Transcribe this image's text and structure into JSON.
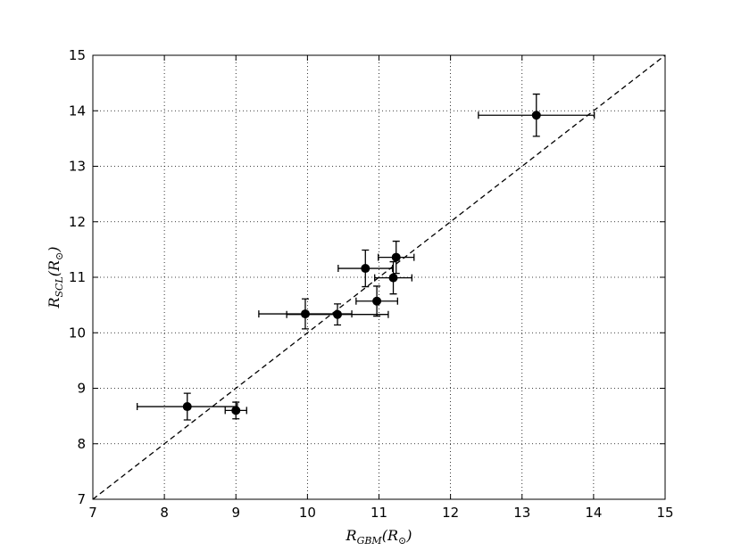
{
  "chart_data": {
    "type": "scatter",
    "x": [
      8.32,
      9.0,
      9.97,
      10.42,
      10.97,
      10.81,
      11.2,
      11.24,
      13.2
    ],
    "values": [
      8.67,
      8.6,
      10.34,
      10.33,
      10.57,
      11.16,
      10.99,
      11.36,
      13.92
    ],
    "xerr": [
      0.7,
      0.15,
      0.65,
      0.71,
      0.29,
      0.38,
      0.26,
      0.25,
      0.81
    ],
    "yerr": [
      0.24,
      0.15,
      0.27,
      0.19,
      0.27,
      0.33,
      0.29,
      0.29,
      0.38
    ],
    "color": "#000000",
    "xlim": [
      7,
      15
    ],
    "ylim": [
      7,
      15
    ],
    "xticks": [
      7,
      8,
      9,
      10,
      11,
      12,
      13,
      14,
      15
    ],
    "yticks": [
      7,
      8,
      9,
      10,
      11,
      12,
      13,
      14,
      15
    ],
    "grid": true,
    "identity_line": true,
    "x_label": [
      {
        "text": "R",
        "sub": false
      },
      {
        "text": "GBM",
        "sub": true
      },
      {
        "text": "(R",
        "sub": false
      },
      {
        "text": "⊙",
        "sub": true
      },
      {
        "text": ")",
        "sub": false
      }
    ],
    "y_label": [
      {
        "text": "R",
        "sub": false
      },
      {
        "text": "SCL",
        "sub": true
      },
      {
        "text": "(R",
        "sub": false
      },
      {
        "text": "⊙",
        "sub": true
      },
      {
        "text": ")",
        "sub": false
      }
    ]
  }
}
